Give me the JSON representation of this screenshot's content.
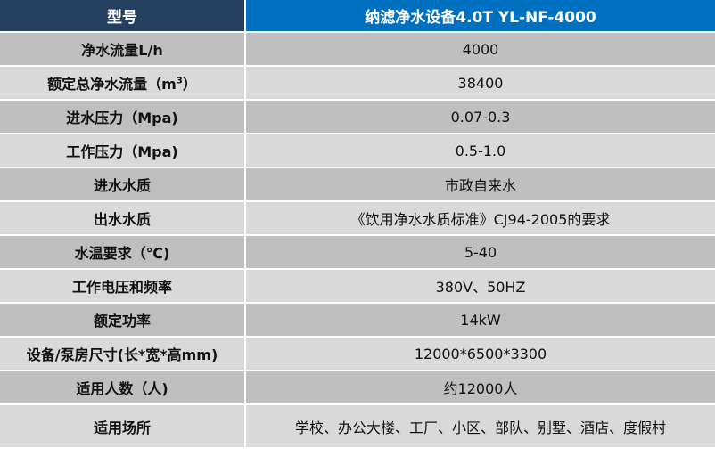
{
  "header": {
    "label": "型号",
    "value": "纳滤净水设备4.0T YL-NF-4000"
  },
  "rows": [
    {
      "label": "净水流量L/h",
      "value": "4000"
    },
    {
      "label": "额定总净水流量（m",
      "label_sup": "3",
      "label_end": "）",
      "value": "38400"
    },
    {
      "label": "进水压力（Mpa)",
      "value": "0.07-0.3"
    },
    {
      "label": "工作压力（Mpa)",
      "value": "0.5-1.0"
    },
    {
      "label": "进水水质",
      "value": "市政自来水"
    },
    {
      "label": "出水水质",
      "value": "《饮用净水水质标准》CJ94-2005的要求"
    },
    {
      "label": "水温要求（℃)",
      "value": "5-40"
    },
    {
      "label": "工作电压和频率",
      "value": "380V、50HZ"
    },
    {
      "label": "额定功率",
      "value": "14kW"
    },
    {
      "label": "设备/泵房尺寸(长*宽*高mm)",
      "value": "12000*6500*3300"
    },
    {
      "label": "适用人数（人)",
      "value": "约12000人"
    },
    {
      "label": "适用场所",
      "value": "学校、办公大楼、工厂、小区、部队、别墅、酒店、度假村"
    }
  ],
  "colors": {
    "header_left": "#243f60",
    "header_right": "#0070c0",
    "row_dark": "#bfbfbf",
    "row_light": "#d9d9d9"
  }
}
